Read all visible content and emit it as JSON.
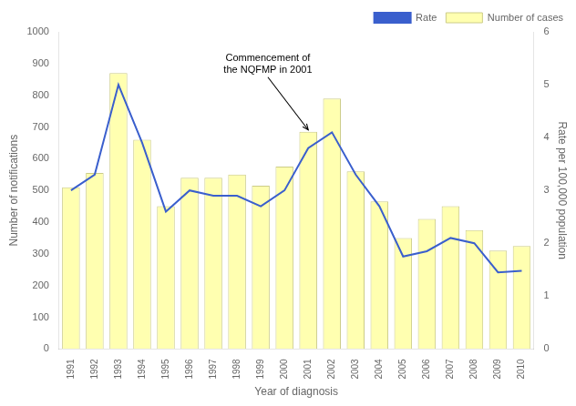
{
  "chart_data": {
    "type": "bar",
    "categories": [
      "1991",
      "1992",
      "1993",
      "1994",
      "1995",
      "1996",
      "1997",
      "1998",
      "1999",
      "2000",
      "2001",
      "2002",
      "2003",
      "2004",
      "2005",
      "2006",
      "2007",
      "2008",
      "2009",
      "2010"
    ],
    "series": [
      {
        "name": "Number of cases",
        "type": "bar",
        "color": "#FFFFB0",
        "values": [
          510,
          555,
          870,
          660,
          450,
          540,
          540,
          550,
          515,
          575,
          685,
          790,
          560,
          465,
          350,
          410,
          450,
          375,
          310,
          325
        ]
      },
      {
        "name": "Rate",
        "type": "line",
        "axis": "y2",
        "color": "#3A5FCD",
        "values": [
          3.0,
          3.3,
          5.0,
          3.9,
          2.6,
          3.0,
          2.9,
          2.9,
          2.7,
          3.0,
          3.8,
          4.1,
          3.3,
          2.7,
          1.75,
          1.85,
          2.1,
          2.0,
          1.45,
          1.48
        ]
      }
    ],
    "x_label": "Year of diagnosis",
    "y_label": "Number of notifications",
    "y2_label": "Rate per 100,000 population",
    "ylim": [
      0,
      1000
    ],
    "yticks": [
      0,
      100,
      200,
      300,
      400,
      500,
      600,
      700,
      800,
      900,
      1000
    ],
    "y2lim": [
      0,
      6
    ],
    "y2ticks": [
      0,
      1,
      2,
      3,
      4,
      5,
      6
    ],
    "grid": false,
    "legend": "upper right",
    "annotations": [
      {
        "text": "Commencement of\nthe NQFMP in 2001",
        "x": "2001",
        "y": 685
      }
    ]
  }
}
